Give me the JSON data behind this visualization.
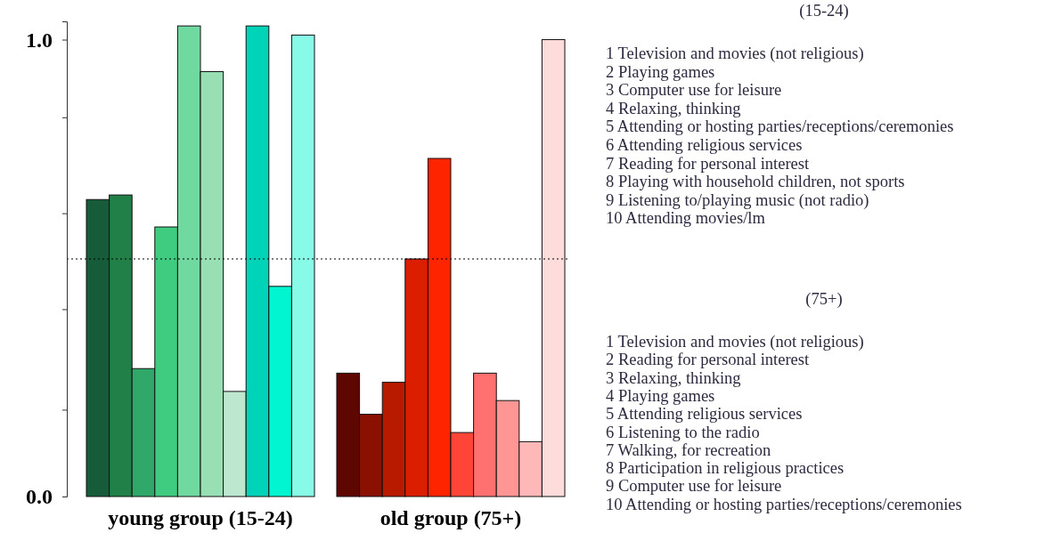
{
  "chart_data": {
    "type": "bar",
    "categories": [
      "young group (15-24)",
      "old group (75+)"
    ],
    "series": [
      {
        "colors": [
          "#165c3a",
          "#5e0600"
        ],
        "values": [
          0.65,
          0.27
        ]
      },
      {
        "colors": [
          "#218048",
          "#8a1000"
        ],
        "values": [
          0.66,
          0.18
        ]
      },
      {
        "colors": [
          "#2fa86a",
          "#b81a00"
        ],
        "values": [
          0.28,
          0.25
        ]
      },
      {
        "colors": [
          "#40cc80",
          "#dc1e00"
        ],
        "values": [
          0.59,
          0.52
        ]
      },
      {
        "colors": [
          "#70d9a0",
          "#ff2400"
        ],
        "values": [
          1.03,
          0.74
        ]
      },
      {
        "colors": [
          "#98e0b4",
          "#ff4538"
        ],
        "values": [
          0.93,
          0.14
        ]
      },
      {
        "colors": [
          "#bde8cf",
          "#ff7070"
        ],
        "values": [
          0.23,
          0.27
        ]
      },
      {
        "colors": [
          "#00d4b8",
          "#ff9694"
        ],
        "values": [
          1.03,
          0.21
        ]
      },
      {
        "colors": [
          "#00f5d0",
          "#ffb8b8"
        ],
        "values": [
          0.46,
          0.12
        ]
      },
      {
        "colors": [
          "#88fbe8",
          "#ffdcdc"
        ],
        "values": [
          1.01,
          1.0
        ]
      }
    ],
    "ylim": [
      0,
      1.04
    ],
    "yticks": [
      {
        "value": 0,
        "label": "0.0"
      },
      {
        "value": 0.19,
        "label": null
      },
      {
        "value": 0.41,
        "label": null
      },
      {
        "value": 0.62,
        "label": null
      },
      {
        "value": 0.83,
        "label": null
      },
      {
        "value": 1.0,
        "label": "1.0"
      },
      {
        "value": 1.04,
        "label": null
      }
    ],
    "ref_lines": [
      {
        "axis": "y",
        "value": 0.52,
        "line_style": "dotted",
        "color": "#000000"
      }
    ],
    "grid": false,
    "annotations": [
      "(15-24)",
      "1 Television and movies (not religious)",
      "2 Playing games",
      "3 Computer use for leisure",
      "4 Relaxing, thinking",
      "5 Attending or hosting parties/receptions/ceremonies",
      "6 Attending religious services",
      "7 Reading for personal interest",
      "8 Playing with household children, not sports",
      "9 Listening to/playing music (not radio)",
      "10 Attending movies/lm",
      "(75+)",
      "1 Television and movies (not religious)",
      "2 Reading for personal interest",
      "3 Relaxing, thinking",
      "4 Playing games",
      "5 Attending religious services",
      "6 Listening to the radio",
      "7 Walking, for recreation",
      "8 Participation in religious practices",
      "9 Computer use for leisure",
      "10 Attending or hosting parties/receptions/ceremonies"
    ]
  }
}
